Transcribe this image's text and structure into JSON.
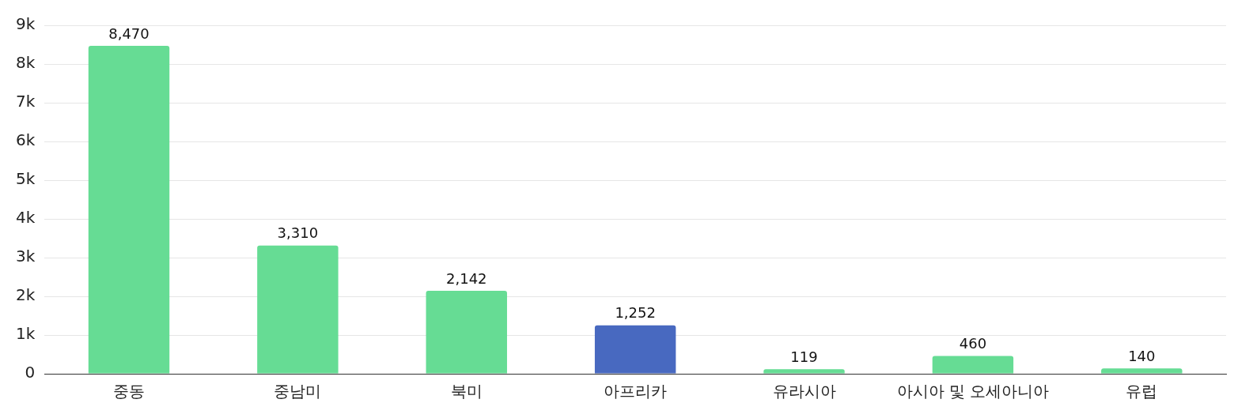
{
  "chart_data": {
    "type": "bar",
    "categories": [
      "중동",
      "중남미",
      "북미",
      "아프리카",
      "유라시아",
      "아시아 및 오세아니아",
      "유럽"
    ],
    "values": [
      8470,
      3310,
      2142,
      1252,
      119,
      460,
      140
    ],
    "colors": [
      "#66dc94",
      "#66dc94",
      "#66dc94",
      "#4869c0",
      "#66dc94",
      "#66dc94",
      "#66dc94"
    ],
    "ylim": [
      0,
      9000
    ],
    "yticks": [
      0,
      {
        "value": 1000,
        "label": "1k"
      },
      {
        "value": 2000,
        "label": "2k"
      },
      {
        "value": 3000,
        "label": "3k"
      },
      {
        "value": 4000,
        "label": "4k"
      },
      {
        "value": 5000,
        "label": "5k"
      },
      {
        "value": 6000,
        "label": "6k"
      },
      {
        "value": 7000,
        "label": "7k"
      },
      {
        "value": 8000,
        "label": "8k"
      },
      {
        "value": 9000,
        "label": "9k"
      }
    ],
    "value_labels": [
      "8,470",
      "3,310",
      "2,142",
      "1,252",
      "119",
      "460",
      "140"
    ],
    "grid": "y",
    "legend": false
  }
}
